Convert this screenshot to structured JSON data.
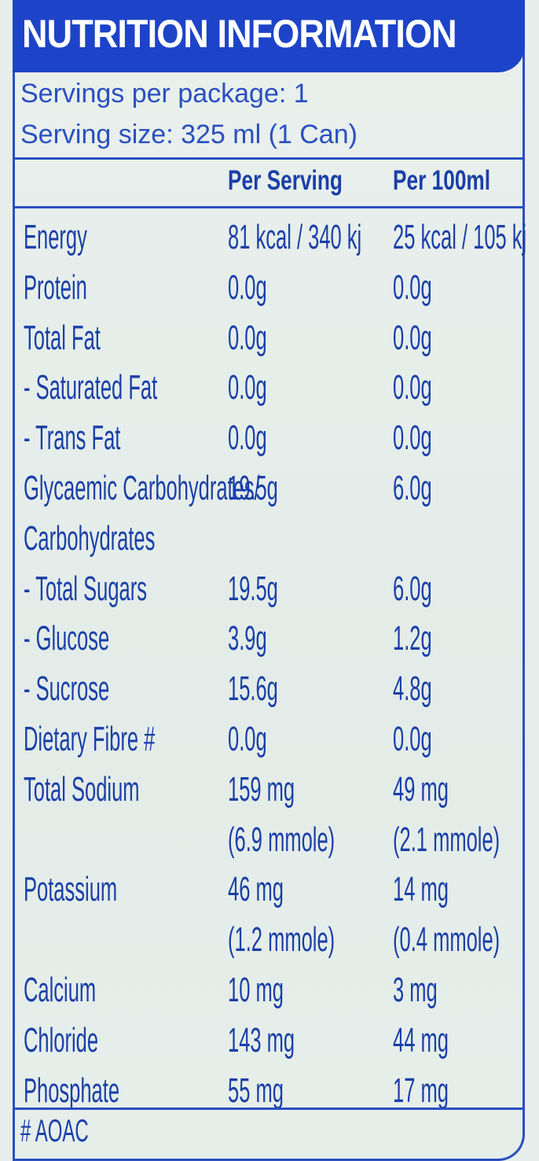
{
  "title": "NUTRITION INFORMATION",
  "servings_per_package": "Servings per package: 1",
  "serving_size": "Serving size: 325 ml (1 Can)",
  "columns": {
    "per_serving": "Per Serving",
    "per_100ml": "Per 100ml"
  },
  "rows": [
    {
      "name": "Energy",
      "serving": "81 kcal / 340 kj",
      "per100": "25 kcal / 105 kj"
    },
    {
      "name": "Protein",
      "serving": "0.0g",
      "per100": "0.0g"
    },
    {
      "name": "Total Fat",
      "serving": "0.0g",
      "per100": "0.0g"
    },
    {
      "name": "- Saturated Fat",
      "serving": "0.0g",
      "per100": "0.0g"
    },
    {
      "name": "- Trans Fat",
      "serving": "0.0g",
      "per100": "0.0g"
    },
    {
      "name": "Glycaemic Carbohydrates/",
      "serving": "19.5g",
      "per100": "6.0g"
    },
    {
      "name": "Carbohydrates",
      "serving": "",
      "per100": ""
    },
    {
      "name": "- Total Sugars",
      "serving": "19.5g",
      "per100": "6.0g"
    },
    {
      "name": " - Glucose",
      "serving": "3.9g",
      "per100": "1.2g"
    },
    {
      "name": " - Sucrose",
      "serving": "15.6g",
      "per100": "4.8g"
    },
    {
      "name": "Dietary Fibre #",
      "serving": "0.0g",
      "per100": "0.0g"
    },
    {
      "name": "Total Sodium",
      "serving": "159 mg",
      "per100": "49 mg"
    },
    {
      "name": "",
      "serving": "(6.9 mmole)",
      "per100": "(2.1 mmole)"
    },
    {
      "name": "Potassium",
      "serving": "46 mg",
      "per100": "14 mg"
    },
    {
      "name": "",
      "serving": "(1.2 mmole)",
      "per100": "(0.4 mmole)"
    },
    {
      "name": "Calcium",
      "serving": "10 mg",
      "per100": "3 mg"
    },
    {
      "name": "Chloride",
      "serving": "143 mg",
      "per100": "44 mg"
    },
    {
      "name": "Phosphate",
      "serving": "55 mg",
      "per100": "17 mg"
    }
  ],
  "footnote": "# AOAC"
}
